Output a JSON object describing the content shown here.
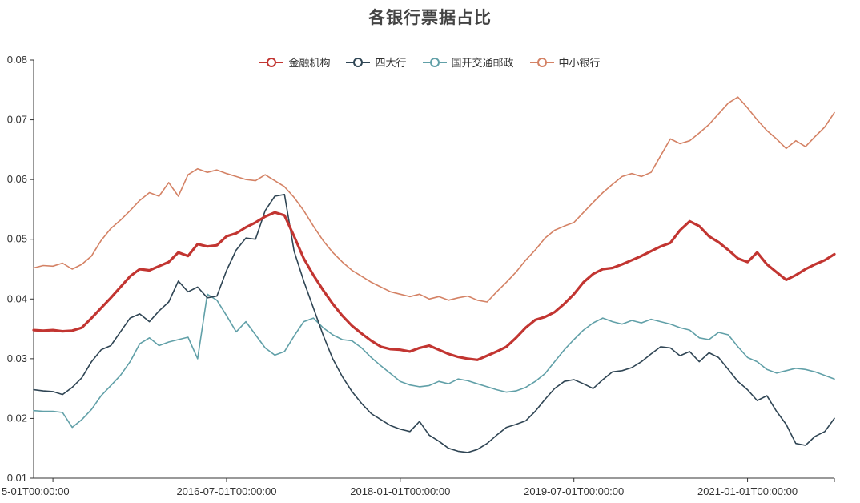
{
  "title": "各银行票据占比",
  "chart_data": {
    "type": "line",
    "title": "各银行票据占比",
    "grid": false,
    "legend_position": "top",
    "x_axis": {
      "n_points": 84,
      "tick_indices": [
        2,
        20,
        38,
        56,
        74
      ],
      "tick_labels": [
        "5-01T00:00:00",
        "2016-07-01T00:00:00",
        "2018-01-01T00:00:00",
        "2019-07-01T00:00:00",
        "2021-01-01T00:00:00"
      ]
    },
    "y_axis": {
      "min": 0.01,
      "max": 0.08,
      "tick_step": 0.01,
      "tick_labels": [
        "0.01",
        "0.02",
        "0.03",
        "0.04",
        "0.05",
        "0.06",
        "0.07",
        "0.08"
      ]
    },
    "series": [
      {
        "name": "金融机构",
        "color": "#c23531",
        "line_width": 3.2,
        "values": [
          0.0348,
          0.0347,
          0.0348,
          0.0346,
          0.0347,
          0.0352,
          0.0368,
          0.0385,
          0.0402,
          0.042,
          0.0438,
          0.045,
          0.0448,
          0.0455,
          0.0462,
          0.0478,
          0.0472,
          0.0492,
          0.0488,
          0.049,
          0.0505,
          0.051,
          0.052,
          0.0528,
          0.0538,
          0.0545,
          0.054,
          0.0505,
          0.0468,
          0.044,
          0.0415,
          0.0392,
          0.0372,
          0.0355,
          0.0342,
          0.033,
          0.032,
          0.0316,
          0.0315,
          0.0312,
          0.0318,
          0.0322,
          0.0315,
          0.0308,
          0.0303,
          0.03,
          0.0298,
          0.0305,
          0.0312,
          0.032,
          0.0335,
          0.0352,
          0.0365,
          0.037,
          0.0378,
          0.0392,
          0.0408,
          0.0428,
          0.0442,
          0.045,
          0.0452,
          0.0458,
          0.0465,
          0.0472,
          0.048,
          0.0488,
          0.0494,
          0.0515,
          0.053,
          0.0522,
          0.0505,
          0.0495,
          0.0482,
          0.0468,
          0.0462,
          0.0478,
          0.0458,
          0.0445,
          0.0432,
          0.044,
          0.045,
          0.0458,
          0.0465,
          0.0475
        ]
      },
      {
        "name": "四大行",
        "color": "#2f4554",
        "line_width": 1.6,
        "values": [
          0.0248,
          0.0246,
          0.0245,
          0.024,
          0.0252,
          0.0268,
          0.0295,
          0.0315,
          0.0322,
          0.0345,
          0.0368,
          0.0375,
          0.0362,
          0.038,
          0.0395,
          0.043,
          0.0412,
          0.042,
          0.0402,
          0.0405,
          0.0448,
          0.0482,
          0.0502,
          0.05,
          0.0548,
          0.0572,
          0.0575,
          0.048,
          0.043,
          0.0385,
          0.034,
          0.03,
          0.027,
          0.0245,
          0.0225,
          0.0208,
          0.0198,
          0.0188,
          0.0182,
          0.0178,
          0.0195,
          0.0172,
          0.0162,
          0.015,
          0.0145,
          0.0143,
          0.0148,
          0.0158,
          0.0172,
          0.0185,
          0.019,
          0.0196,
          0.0212,
          0.0232,
          0.025,
          0.0262,
          0.0265,
          0.0258,
          0.025,
          0.0265,
          0.0278,
          0.028,
          0.0285,
          0.0295,
          0.0308,
          0.032,
          0.0318,
          0.0305,
          0.0312,
          0.0295,
          0.031,
          0.0302,
          0.0282,
          0.0262,
          0.0248,
          0.023,
          0.0238,
          0.0212,
          0.019,
          0.0158,
          0.0155,
          0.017,
          0.0178,
          0.02
        ]
      },
      {
        "name": "国开交通邮政",
        "color": "#61a0a8",
        "line_width": 1.6,
        "values": [
          0.0213,
          0.0212,
          0.0212,
          0.021,
          0.0185,
          0.0198,
          0.0215,
          0.0238,
          0.0255,
          0.0272,
          0.0295,
          0.0325,
          0.0335,
          0.0322,
          0.0328,
          0.0332,
          0.0336,
          0.03,
          0.0408,
          0.0398,
          0.0372,
          0.0345,
          0.0362,
          0.034,
          0.0318,
          0.0306,
          0.0312,
          0.0338,
          0.0362,
          0.0368,
          0.0352,
          0.034,
          0.0332,
          0.033,
          0.0318,
          0.0302,
          0.0288,
          0.0275,
          0.0262,
          0.0256,
          0.0253,
          0.0255,
          0.0262,
          0.0258,
          0.0266,
          0.0263,
          0.0258,
          0.0253,
          0.0248,
          0.0244,
          0.0246,
          0.0252,
          0.0262,
          0.0275,
          0.0295,
          0.0315,
          0.0332,
          0.0348,
          0.036,
          0.0368,
          0.0362,
          0.0358,
          0.0364,
          0.036,
          0.0366,
          0.0362,
          0.0358,
          0.0352,
          0.0348,
          0.0335,
          0.0332,
          0.0344,
          0.034,
          0.032,
          0.0302,
          0.0295,
          0.0282,
          0.0276,
          0.028,
          0.0284,
          0.0282,
          0.0278,
          0.0272,
          0.0266
        ]
      },
      {
        "name": "中小银行",
        "color": "#d48265",
        "line_width": 1.6,
        "values": [
          0.0452,
          0.0456,
          0.0455,
          0.046,
          0.045,
          0.0458,
          0.0472,
          0.0498,
          0.0518,
          0.0532,
          0.0548,
          0.0565,
          0.0578,
          0.0572,
          0.0595,
          0.0572,
          0.0608,
          0.0618,
          0.0612,
          0.0616,
          0.061,
          0.0605,
          0.06,
          0.0598,
          0.0608,
          0.0598,
          0.0588,
          0.057,
          0.0548,
          0.0522,
          0.0498,
          0.0478,
          0.0462,
          0.0448,
          0.0438,
          0.0428,
          0.042,
          0.0412,
          0.0408,
          0.0404,
          0.0408,
          0.04,
          0.0404,
          0.0398,
          0.0402,
          0.0405,
          0.0398,
          0.0395,
          0.0412,
          0.0428,
          0.0445,
          0.0465,
          0.0482,
          0.0502,
          0.0515,
          0.0522,
          0.0528,
          0.0545,
          0.0562,
          0.0578,
          0.0592,
          0.0605,
          0.061,
          0.0605,
          0.0612,
          0.064,
          0.0668,
          0.066,
          0.0665,
          0.0678,
          0.0692,
          0.071,
          0.0728,
          0.0738,
          0.072,
          0.07,
          0.0682,
          0.0668,
          0.0652,
          0.0665,
          0.0655,
          0.0672,
          0.0688,
          0.0712
        ]
      }
    ]
  }
}
